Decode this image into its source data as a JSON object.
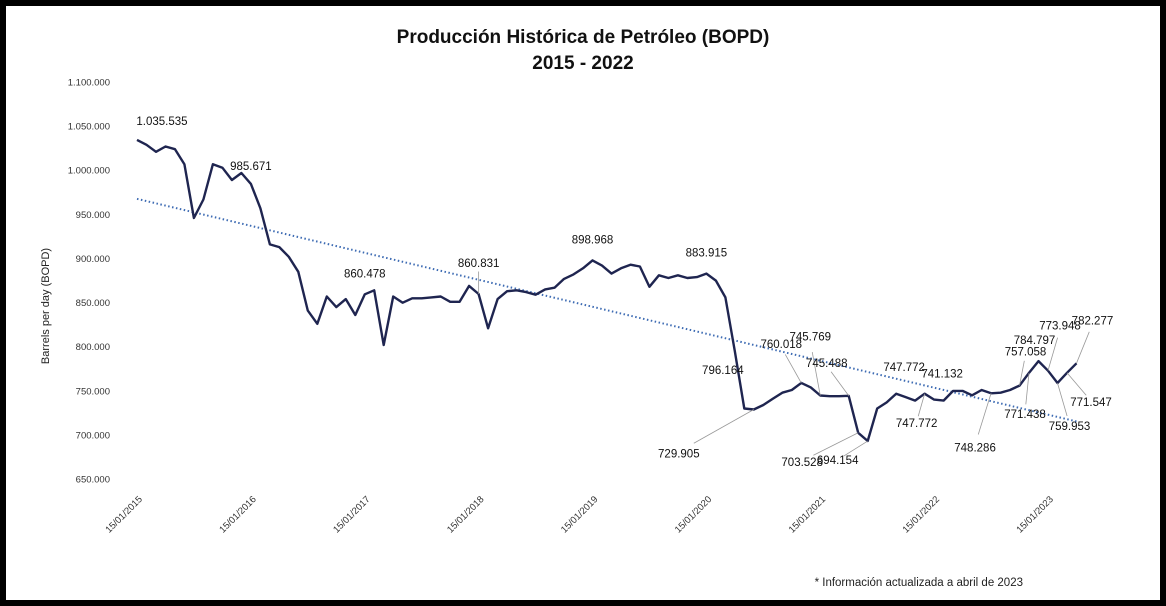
{
  "chart_data": {
    "type": "line",
    "title": "Producción Histórica de Petróleo (BOPD)",
    "subtitle": "2015 - 2022",
    "y_label": "Barrels per day (BOPD)",
    "note": "* Información actualizada a abril de 2023",
    "color": "#1f2550",
    "trend_color": "#3d6bb3",
    "categories": [
      "15/01/2015",
      null,
      null,
      null,
      null,
      null,
      null,
      null,
      null,
      null,
      null,
      null,
      "15/01/2016",
      null,
      null,
      null,
      null,
      null,
      null,
      null,
      null,
      null,
      null,
      null,
      "15/01/2017",
      null,
      null,
      null,
      null,
      null,
      null,
      null,
      null,
      null,
      null,
      null,
      "15/01/2018",
      null,
      null,
      null,
      null,
      null,
      null,
      null,
      null,
      null,
      null,
      null,
      "15/01/2019",
      null,
      null,
      null,
      null,
      null,
      null,
      null,
      null,
      null,
      null,
      null,
      "15/01/2020",
      null,
      null,
      null,
      null,
      null,
      null,
      null,
      null,
      null,
      null,
      null,
      "15/01/2021",
      null,
      null,
      null,
      null,
      null,
      null,
      null,
      null,
      null,
      null,
      null,
      "15/01/2022",
      null,
      null,
      null,
      null,
      null,
      null,
      null,
      null,
      null,
      null,
      null,
      "15/01/2023",
      null,
      null,
      null
    ],
    "values": [
      1035535,
      1030000,
      1022000,
      1028000,
      1025000,
      1008000,
      947000,
      968000,
      1008000,
      1004000,
      990000,
      998000,
      985671,
      958000,
      917000,
      914000,
      903000,
      886000,
      842000,
      827000,
      858000,
      846000,
      855000,
      837000,
      860478,
      865000,
      803000,
      858000,
      851000,
      856000,
      856000,
      857000,
      858000,
      852000,
      852000,
      870000,
      860831,
      822000,
      855000,
      864000,
      865000,
      863000,
      860000,
      866000,
      868000,
      878000,
      883000,
      890000,
      898968,
      893000,
      884000,
      890000,
      894000,
      892000,
      869000,
      882000,
      879000,
      882000,
      879000,
      880000,
      883915,
      876000,
      857000,
      796164,
      731000,
      729905,
      735000,
      742000,
      749000,
      752000,
      760018,
      755000,
      745769,
      745000,
      745000,
      745488,
      703528,
      694154,
      731000,
      738000,
      747772,
      744000,
      740000,
      747772,
      741132,
      740000,
      751000,
      751000,
      746000,
      752000,
      748286,
      749000,
      752000,
      757058,
      771438,
      784797,
      773948,
      759953,
      771547,
      782277
    ],
    "value_labels": [
      "1.035.535",
      null,
      null,
      null,
      null,
      null,
      null,
      null,
      null,
      null,
      null,
      null,
      "985.671",
      null,
      null,
      null,
      null,
      null,
      null,
      null,
      null,
      null,
      null,
      null,
      "860.478",
      null,
      null,
      null,
      null,
      null,
      null,
      null,
      null,
      null,
      null,
      null,
      "860.831",
      null,
      null,
      null,
      null,
      null,
      null,
      null,
      null,
      null,
      null,
      null,
      "898.968",
      null,
      null,
      null,
      null,
      null,
      null,
      null,
      null,
      null,
      null,
      null,
      "883.915",
      null,
      null,
      "796.164",
      null,
      "729.905",
      null,
      null,
      null,
      null,
      "760.018",
      null,
      "745.769",
      null,
      null,
      "745.488",
      "703.528",
      "694.154",
      null,
      null,
      "747.772",
      null,
      null,
      "747.772",
      "741.132",
      null,
      null,
      null,
      null,
      null,
      "748.286",
      null,
      null,
      "757.058",
      "771.438",
      "784.797",
      "773.948",
      "759.953",
      "771.547",
      "782.277"
    ],
    "ylim": [
      650000,
      1100000
    ],
    "yticks": [
      {
        "value": 650000,
        "label": "650.000"
      },
      {
        "value": 700000,
        "label": "700.000"
      },
      {
        "value": 750000,
        "label": "750.000"
      },
      {
        "value": 800000,
        "label": "800.000"
      },
      {
        "value": 850000,
        "label": "850.000"
      },
      {
        "value": 900000,
        "label": "900.000"
      },
      {
        "value": 950000,
        "label": "950.000"
      },
      {
        "value": 1000000,
        "label": "1.000.000"
      },
      {
        "value": 1050000,
        "label": "1.050.000"
      },
      {
        "value": 1100000,
        "label": "1.100.000"
      }
    ],
    "trendline": true
  }
}
